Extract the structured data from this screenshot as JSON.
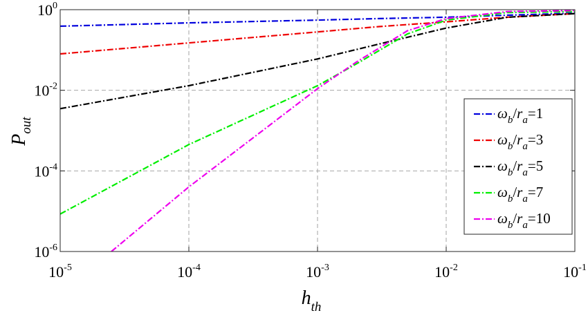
{
  "chart_data": {
    "type": "line",
    "x_scale": "log",
    "y_scale": "log",
    "xlim": [
      1e-05,
      0.1
    ],
    "ylim": [
      1e-06,
      1
    ],
    "grid": true,
    "legend_position": "right",
    "xlabel": {
      "main": "h",
      "sub": "th"
    },
    "ylabel": {
      "main": "P",
      "sub": "out"
    },
    "x_ticks": [
      {
        "value": 1e-05,
        "base": "10",
        "exp": "-5"
      },
      {
        "value": 0.0001,
        "base": "10",
        "exp": "-4"
      },
      {
        "value": 0.001,
        "base": "10",
        "exp": "-3"
      },
      {
        "value": 0.01,
        "base": "10",
        "exp": "-2"
      },
      {
        "value": 0.1,
        "base": "10",
        "exp": "-1"
      }
    ],
    "y_ticks": [
      {
        "value": 1e-06,
        "base": "10",
        "exp": "-6"
      },
      {
        "value": 0.0001,
        "base": "10",
        "exp": "-4"
      },
      {
        "value": 0.01,
        "base": "10",
        "exp": "-2"
      },
      {
        "value": 1,
        "base": "10",
        "exp": "0"
      }
    ],
    "series": [
      {
        "name": "ω_b/r_a=1",
        "label_parts": [
          "ω",
          "b",
          "/",
          "r",
          "a",
          "=1"
        ],
        "color": "#0000dd",
        "x": [
          1e-05,
          0.0001,
          0.001,
          0.003,
          0.01,
          0.03,
          0.1
        ],
        "y": [
          0.39,
          0.47,
          0.55,
          0.6,
          0.65,
          0.73,
          0.82
        ]
      },
      {
        "name": "ω_b/r_a=3",
        "label_parts": [
          "ω",
          "b",
          "/",
          "r",
          "a",
          "=3"
        ],
        "color": "#ee0000",
        "x": [
          1e-05,
          0.0001,
          0.001,
          0.003,
          0.01,
          0.03,
          0.1
        ],
        "y": [
          0.08,
          0.15,
          0.28,
          0.38,
          0.5,
          0.65,
          0.8
        ]
      },
      {
        "name": "ω_b/r_a=5",
        "label_parts": [
          "ω",
          "b",
          "/",
          "r",
          "a",
          "=5"
        ],
        "color": "#000000",
        "x": [
          1e-05,
          0.0001,
          0.001,
          0.003,
          0.01,
          0.03,
          0.1
        ],
        "y": [
          0.0035,
          0.013,
          0.06,
          0.14,
          0.35,
          0.65,
          0.8
        ]
      },
      {
        "name": "ω_b/r_a=7",
        "label_parts": [
          "ω",
          "b",
          "/",
          "r",
          "a",
          "=7"
        ],
        "color": "#00ee00",
        "x": [
          1e-05,
          0.0001,
          0.001,
          0.002,
          0.005,
          0.01,
          0.03,
          0.1
        ],
        "y": [
          8.5e-06,
          0.00045,
          0.013,
          0.045,
          0.25,
          0.55,
          0.85,
          0.9
        ]
      },
      {
        "name": "ω_b/r_a=10",
        "label_parts": [
          "ω",
          "b",
          "/",
          "r",
          "a",
          "=10"
        ],
        "color": "#ee00ee",
        "x": [
          2.5e-05,
          0.0001,
          0.001,
          0.002,
          0.005,
          0.01,
          0.03,
          0.1
        ],
        "y": [
          1e-06,
          4e-05,
          0.011,
          0.05,
          0.3,
          0.6,
          0.9,
          0.95
        ]
      }
    ]
  }
}
